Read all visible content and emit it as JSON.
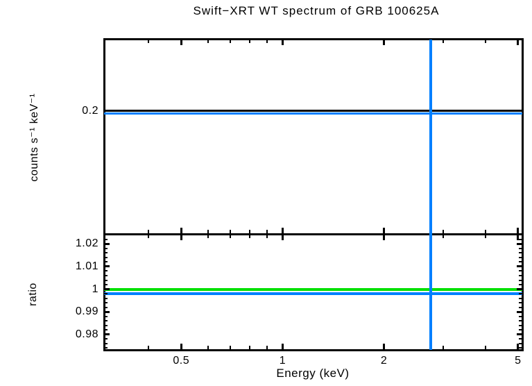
{
  "title": "Swift−XRT WT spectrum of GRB 100625A",
  "colors": {
    "axis": "#000000",
    "model_blue": "#0080ff",
    "reference_green": "#00e000"
  },
  "chart_data": [
    {
      "type": "line",
      "panel": "spectrum",
      "title": "Swift−XRT WT spectrum of GRB 100625A",
      "ylabel": "counts s⁻¹ keV⁻¹",
      "x_scale": "log",
      "y_scale": "log",
      "xlim": [
        0.295,
        5.15
      ],
      "ylim": [
        0.1,
        0.3
      ],
      "x_ticks_major": [
        0.5,
        1,
        2,
        5
      ],
      "x_tick_labels": [
        "0.5",
        "1",
        "2",
        "5"
      ],
      "x_ticks_minor": [
        0.4,
        0.6,
        0.7,
        0.8,
        0.9,
        3,
        4
      ],
      "y_ticks_major": [
        0.2
      ],
      "y_tick_labels": [
        "0.2"
      ],
      "grid": false,
      "legend": "none",
      "series": [
        {
          "name": "spectrum-data",
          "style": "hline",
          "color": "#000000",
          "value": 0.2,
          "thickness": 3
        },
        {
          "name": "spectrum-model",
          "style": "hline",
          "color": "#0080ff",
          "value": 0.197,
          "thickness": 3
        }
      ],
      "vlines": [
        {
          "x": 2.75,
          "color": "#0080ff",
          "thickness": 4
        }
      ]
    },
    {
      "type": "line",
      "panel": "ratio",
      "ylabel": "ratio",
      "xlabel": "Energy (keV)",
      "x_scale": "log",
      "y_scale": "linear",
      "xlim": [
        0.295,
        5.15
      ],
      "ylim": [
        0.9732,
        1.0244
      ],
      "x_ticks_major": [
        0.5,
        1,
        2,
        5
      ],
      "x_tick_labels": [
        "0.5",
        "1",
        "2",
        "5"
      ],
      "x_ticks_minor": [
        0.4,
        0.6,
        0.7,
        0.8,
        0.9,
        3,
        4
      ],
      "y_ticks_major": [
        0.98,
        0.99,
        1,
        1.01,
        1.02
      ],
      "y_tick_labels": [
        "0.98",
        "0.99",
        "1",
        "1.01",
        "1.02"
      ],
      "y_minor_step": 0.002,
      "grid": false,
      "legend": "none",
      "series": [
        {
          "name": "ratio-unity",
          "style": "hline",
          "color": "#00e000",
          "value": 1.0,
          "thickness": 4
        },
        {
          "name": "ratio-data",
          "style": "hline",
          "color": "#0080ff",
          "value": 0.998,
          "thickness": 4
        }
      ],
      "vlines": [
        {
          "x": 2.75,
          "color": "#0080ff",
          "thickness": 4
        }
      ]
    }
  ]
}
